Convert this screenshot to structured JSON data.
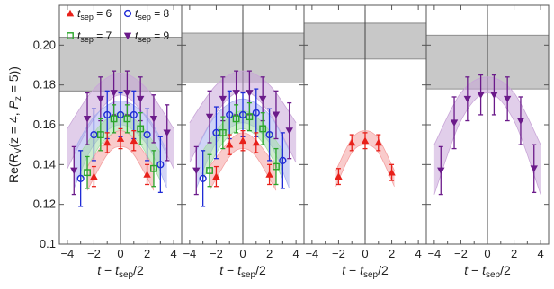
{
  "chart_data": {
    "type": "scatter",
    "ylabel_parts": {
      "pre": "Re(",
      "R": "R",
      "Rsub": "V",
      "mid": "(z = 4, ",
      "P": "P",
      "Psub": "z",
      "post": " = 5))"
    },
    "xlabel_parts": {
      "t": "t",
      "minus": " − ",
      "tsep": "t",
      "sepsub": "sep",
      "post": "/2"
    },
    "ylim": [
      0.1,
      0.22
    ],
    "yticks": [
      0.1,
      0.12,
      0.14,
      0.16,
      0.18,
      0.2
    ],
    "ytick_labels": [
      "0.1",
      "0.12",
      "0.14",
      "0.16",
      "0.18",
      "0.20"
    ],
    "xlim": [
      -4.6,
      4.6
    ],
    "xticks": [
      -4,
      -2,
      0,
      2,
      4
    ],
    "xtick_labels": [
      "−4",
      "−2",
      "0",
      "2",
      "4"
    ],
    "legend": [
      {
        "series": "6",
        "label_pre": "t",
        "label_sub": "sep",
        "label_post": " = 6",
        "marker": "triangle-up",
        "color": "#e8201a"
      },
      {
        "series": "8",
        "label_pre": "t",
        "label_sub": "sep",
        "label_post": " = 8",
        "marker": "circle-open",
        "color": "#1f2bd6"
      },
      {
        "series": "7",
        "label_pre": "t",
        "label_sub": "sep",
        "label_post": " = 7",
        "marker": "square-open",
        "color": "#2aa52a"
      },
      {
        "series": "9",
        "label_pre": "t",
        "label_sub": "sep",
        "label_post": " = 9",
        "marker": "triangle-down",
        "color": "#6b1a8a"
      }
    ],
    "series_styles": {
      "6": {
        "color": "#e8201a",
        "band": "#f4a0a0",
        "marker": "triangle-up"
      },
      "7": {
        "color": "#2aa52a",
        "band": "#a6dca6",
        "marker": "square-open"
      },
      "8": {
        "color": "#1f2bd6",
        "band": "#a9b1ee",
        "marker": "circle-open"
      },
      "9": {
        "color": "#6b1a8a",
        "band": "#c9a6d8",
        "marker": "triangle-down"
      }
    },
    "panels": [
      {
        "band": [
          0.177,
          0.204
        ],
        "series": [
          {
            "key": "9",
            "x": [
              -3.5,
              -2.5,
              -1.5,
              -0.5,
              0.5,
              1.5,
              2.5,
              3.5
            ],
            "y": [
              0.137,
              0.163,
              0.173,
              0.176,
              0.176,
              0.173,
              0.163,
              0.156
            ],
            "err": [
              0.012,
              0.013,
              0.011,
              0.011,
              0.011,
              0.011,
              0.012,
              0.014
            ],
            "fit": [
              [
                -4,
                0.138,
                0.158
              ],
              [
                -2,
                0.163,
                0.178
              ],
              [
                0,
                0.175,
                0.186
              ],
              [
                2,
                0.163,
                0.178
              ],
              [
                4,
                0.138,
                0.158
              ]
            ]
          },
          {
            "key": "8",
            "x": [
              -3,
              -2,
              -1,
              0,
              1,
              2,
              3
            ],
            "y": [
              0.133,
              0.155,
              0.165,
              0.165,
              0.165,
              0.155,
              0.14
            ],
            "err": [
              0.014,
              0.013,
              0.012,
              0.011,
              0.012,
              0.013,
              0.014
            ],
            "fit": [
              [
                -3.5,
                0.128,
                0.147
              ],
              [
                -2,
                0.15,
                0.164
              ],
              [
                0,
                0.16,
                0.172
              ],
              [
                2,
                0.15,
                0.164
              ],
              [
                3.5,
                0.128,
                0.147
              ]
            ]
          },
          {
            "key": "7",
            "x": [
              -2.5,
              -1.5,
              -0.5,
              0.5,
              1.5,
              2.5
            ],
            "y": [
              0.136,
              0.155,
              0.163,
              0.163,
              0.158,
              0.138
            ],
            "err": [
              0.008,
              0.008,
              0.007,
              0.007,
              0.008,
              0.009
            ],
            "fit": [
              [
                -3,
                0.132,
                0.146
              ],
              [
                -1.5,
                0.15,
                0.16
              ],
              [
                0,
                0.157,
                0.166
              ],
              [
                1.5,
                0.15,
                0.16
              ],
              [
                3,
                0.132,
                0.146
              ]
            ]
          },
          {
            "key": "6",
            "x": [
              -2,
              -1,
              0,
              1,
              2
            ],
            "y": [
              0.134,
              0.151,
              0.153,
              0.152,
              0.135
            ],
            "err": [
              0.005,
              0.005,
              0.005,
              0.005,
              0.005
            ],
            "fit": [
              [
                -2.5,
                0.127,
                0.139
              ],
              [
                -1,
                0.145,
                0.153
              ],
              [
                0,
                0.149,
                0.157
              ],
              [
                1,
                0.145,
                0.153
              ],
              [
                2.5,
                0.127,
                0.139
              ]
            ]
          }
        ]
      },
      {
        "band": [
          0.181,
          0.206
        ],
        "series": [
          {
            "key": "9",
            "x": [
              -3.5,
              -2.5,
              -1.5,
              -0.5,
              0.5,
              1.5,
              2.5,
              3.5
            ],
            "y": [
              0.137,
              0.164,
              0.173,
              0.176,
              0.176,
              0.173,
              0.165,
              0.157
            ],
            "err": [
              0.012,
              0.013,
              0.011,
              0.011,
              0.011,
              0.011,
              0.012,
              0.014
            ],
            "fit": [
              [
                -4,
                0.141,
                0.161
              ],
              [
                -2,
                0.166,
                0.18
              ],
              [
                0,
                0.177,
                0.187
              ],
              [
                2,
                0.166,
                0.18
              ],
              [
                4,
                0.141,
                0.161
              ]
            ]
          },
          {
            "key": "8",
            "x": [
              -3,
              -2,
              -1,
              0,
              1,
              2,
              3
            ],
            "y": [
              0.133,
              0.156,
              0.165,
              0.165,
              0.166,
              0.155,
              0.142
            ],
            "err": [
              0.014,
              0.013,
              0.012,
              0.011,
              0.012,
              0.013,
              0.014
            ],
            "fit": [
              [
                -3.5,
                0.128,
                0.147
              ],
              [
                -2,
                0.151,
                0.165
              ],
              [
                0,
                0.161,
                0.173
              ],
              [
                2,
                0.151,
                0.165
              ],
              [
                3.5,
                0.128,
                0.147
              ]
            ]
          },
          {
            "key": "7",
            "x": [
              -2.5,
              -1.5,
              -0.5,
              0.5,
              1.5,
              2.5
            ],
            "y": [
              0.137,
              0.156,
              0.163,
              0.164,
              0.158,
              0.139
            ],
            "err": [
              0.008,
              0.008,
              0.007,
              0.007,
              0.008,
              0.009
            ],
            "fit": [
              [
                -3,
                0.133,
                0.147
              ],
              [
                -1.5,
                0.151,
                0.161
              ],
              [
                0,
                0.158,
                0.167
              ],
              [
                1.5,
                0.151,
                0.161
              ],
              [
                3,
                0.133,
                0.147
              ]
            ]
          },
          {
            "key": "6",
            "x": [
              -2,
              -1,
              0,
              1,
              2
            ],
            "y": [
              0.134,
              0.15,
              0.152,
              0.151,
              0.135
            ],
            "err": [
              0.005,
              0.005,
              0.005,
              0.005,
              0.005
            ],
            "fit": [
              [
                -2.5,
                0.127,
                0.139
              ],
              [
                -1,
                0.144,
                0.152
              ],
              [
                0,
                0.148,
                0.156
              ],
              [
                1,
                0.144,
                0.152
              ],
              [
                2.5,
                0.127,
                0.139
              ]
            ]
          }
        ]
      },
      {
        "band": [
          0.193,
          0.211
        ],
        "series": [
          {
            "key": "6",
            "x": [
              -2,
              -1,
              0,
              1,
              2
            ],
            "y": [
              0.134,
              0.151,
              0.152,
              0.151,
              0.136
            ],
            "err": [
              0.004,
              0.004,
              0.004,
              0.004,
              0.004
            ],
            "fit": [
              [
                -2.2,
                0.129,
                0.137
              ],
              [
                -1,
                0.146,
                0.153
              ],
              [
                0,
                0.15,
                0.157
              ],
              [
                1,
                0.146,
                0.153
              ],
              [
                2.2,
                0.129,
                0.137
              ]
            ]
          }
        ]
      },
      {
        "band": [
          0.178,
          0.205
        ],
        "series": [
          {
            "key": "9",
            "x": [
              -3.5,
              -2.5,
              -1.5,
              -0.5,
              0.5,
              1.5,
              2.5,
              3.5
            ],
            "y": [
              0.137,
              0.161,
              0.173,
              0.175,
              0.175,
              0.173,
              0.162,
              0.138
            ],
            "err": [
              0.012,
              0.013,
              0.011,
              0.01,
              0.01,
              0.011,
              0.012,
              0.012
            ],
            "fit": [
              [
                -4,
                0.125,
                0.15
              ],
              [
                -2,
                0.162,
                0.176
              ],
              [
                0,
                0.176,
                0.184
              ],
              [
                2,
                0.162,
                0.176
              ],
              [
                4,
                0.125,
                0.15
              ]
            ]
          }
        ]
      }
    ]
  }
}
